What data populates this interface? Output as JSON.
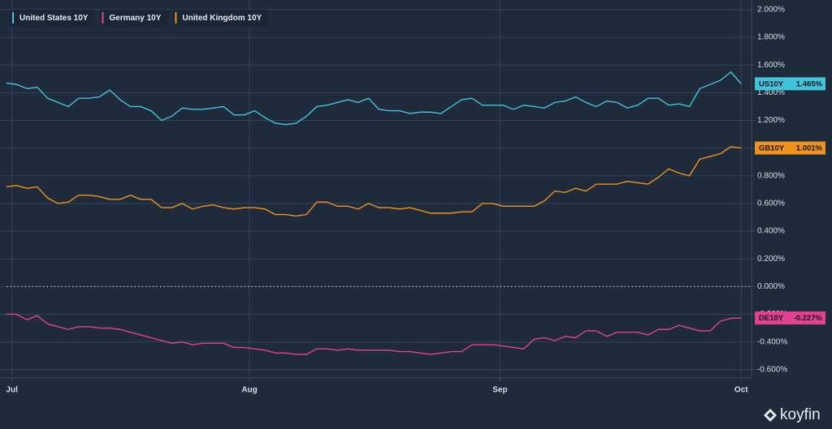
{
  "chart_data": {
    "type": "line",
    "x": [
      0,
      1,
      2,
      3,
      4,
      5,
      6,
      7,
      8,
      9,
      10,
      11,
      12,
      13,
      14,
      15,
      16,
      17,
      18,
      19,
      20,
      21,
      22,
      23,
      24,
      25,
      26,
      27,
      28,
      29,
      30,
      31,
      32,
      33,
      34,
      35,
      36,
      37,
      38,
      39,
      40,
      41,
      42,
      43,
      44,
      45,
      46,
      47,
      48,
      49,
      50,
      51,
      52,
      53,
      54,
      55,
      56,
      57,
      58,
      59,
      60,
      61,
      62,
      63,
      64,
      65,
      66,
      67,
      68,
      69,
      70,
      71
    ],
    "series": [
      {
        "name": "United States 10Y",
        "label": "US10Y",
        "last_value_label": "1.465%",
        "color": "#3fc4dc",
        "values": [
          1.47,
          1.46,
          1.43,
          1.44,
          1.36,
          1.33,
          1.3,
          1.36,
          1.36,
          1.37,
          1.42,
          1.35,
          1.3,
          1.3,
          1.27,
          1.2,
          1.23,
          1.29,
          1.28,
          1.28,
          1.29,
          1.3,
          1.24,
          1.24,
          1.27,
          1.22,
          1.18,
          1.17,
          1.18,
          1.23,
          1.3,
          1.31,
          1.33,
          1.35,
          1.33,
          1.36,
          1.28,
          1.27,
          1.27,
          1.25,
          1.26,
          1.26,
          1.25,
          1.3,
          1.35,
          1.36,
          1.31,
          1.31,
          1.31,
          1.28,
          1.31,
          1.3,
          1.29,
          1.33,
          1.34,
          1.37,
          1.33,
          1.3,
          1.34,
          1.33,
          1.29,
          1.31,
          1.36,
          1.36,
          1.31,
          1.32,
          1.3,
          1.43,
          1.46,
          1.49,
          1.55,
          1.465
        ]
      },
      {
        "name": "Germany 10Y",
        "label": "DE10Y",
        "last_value_label": "-0.227%",
        "color": "#e0428f",
        "values": [
          -0.2,
          -0.2,
          -0.24,
          -0.21,
          -0.27,
          -0.29,
          -0.31,
          -0.29,
          -0.29,
          -0.3,
          -0.3,
          -0.31,
          -0.33,
          -0.35,
          -0.37,
          -0.39,
          -0.41,
          -0.4,
          -0.42,
          -0.41,
          -0.41,
          -0.41,
          -0.44,
          -0.44,
          -0.45,
          -0.46,
          -0.48,
          -0.48,
          -0.49,
          -0.49,
          -0.45,
          -0.45,
          -0.46,
          -0.45,
          -0.46,
          -0.46,
          -0.46,
          -0.46,
          -0.47,
          -0.47,
          -0.48,
          -0.49,
          -0.48,
          -0.47,
          -0.47,
          -0.42,
          -0.42,
          -0.42,
          -0.43,
          -0.44,
          -0.45,
          -0.38,
          -0.37,
          -0.39,
          -0.36,
          -0.37,
          -0.32,
          -0.32,
          -0.36,
          -0.33,
          -0.33,
          -0.33,
          -0.35,
          -0.31,
          -0.31,
          -0.28,
          -0.3,
          -0.32,
          -0.32,
          -0.25,
          -0.23,
          -0.227
        ]
      },
      {
        "name": "United Kingdom 10Y",
        "label": "GB10Y",
        "last_value_label": "1.001%",
        "color": "#f0921e",
        "values": [
          0.72,
          0.73,
          0.71,
          0.72,
          0.64,
          0.6,
          0.61,
          0.66,
          0.66,
          0.65,
          0.63,
          0.63,
          0.66,
          0.63,
          0.63,
          0.57,
          0.57,
          0.6,
          0.56,
          0.58,
          0.59,
          0.57,
          0.56,
          0.57,
          0.57,
          0.56,
          0.52,
          0.52,
          0.51,
          0.52,
          0.61,
          0.61,
          0.58,
          0.58,
          0.56,
          0.6,
          0.57,
          0.57,
          0.56,
          0.57,
          0.55,
          0.53,
          0.53,
          0.53,
          0.54,
          0.54,
          0.6,
          0.6,
          0.58,
          0.58,
          0.58,
          0.58,
          0.62,
          0.69,
          0.68,
          0.71,
          0.69,
          0.74,
          0.74,
          0.74,
          0.76,
          0.75,
          0.74,
          0.79,
          0.85,
          0.82,
          0.8,
          0.92,
          0.94,
          0.96,
          1.01,
          1.001
        ]
      }
    ],
    "xlim": [
      -0.6,
      72
    ],
    "xticks": [
      {
        "value": 0.55,
        "label": "Jul"
      },
      {
        "value": 23.5,
        "label": "Aug"
      },
      {
        "value": 47.7,
        "label": "Sep"
      },
      {
        "value": 71,
        "label": "Oct"
      }
    ],
    "ylim": [
      -0.66,
      2.07
    ],
    "yticks": [
      {
        "value": -0.6,
        "label": "-0.600%"
      },
      {
        "value": -0.4,
        "label": "-0.400%"
      },
      {
        "value": -0.2,
        "label": "-0.200%"
      },
      {
        "value": 0,
        "label": "0.000%"
      },
      {
        "value": 0.2,
        "label": "0.200%"
      },
      {
        "value": 0.4,
        "label": "0.400%"
      },
      {
        "value": 0.6,
        "label": "0.600%"
      },
      {
        "value": 0.8,
        "label": "0.800%"
      },
      {
        "value": 1.0,
        "label": "1.000%"
      },
      {
        "value": 1.2,
        "label": "1.200%"
      },
      {
        "value": 1.4,
        "label": "1.400%"
      },
      {
        "value": 1.6,
        "label": "1.600%"
      },
      {
        "value": 1.8,
        "label": "1.800%"
      },
      {
        "value": 2.0,
        "label": "2.000%"
      }
    ],
    "reference_line": 0,
    "grid": true,
    "legend": "top-left",
    "watermark": "koyfin"
  }
}
